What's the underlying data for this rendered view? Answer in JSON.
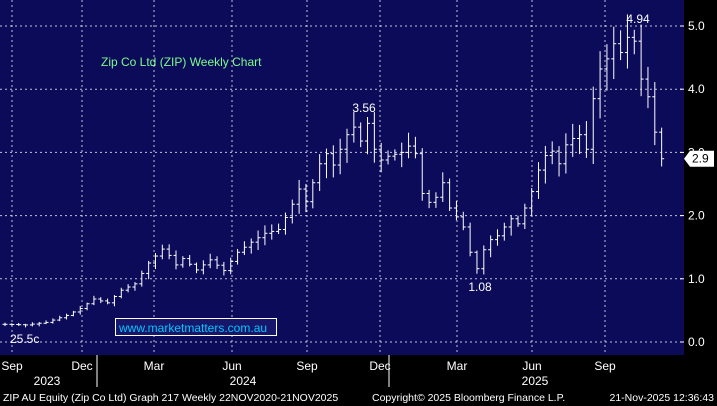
{
  "chart_data": {
    "type": "ohlc",
    "title": "Zip Co Ltd (ZIP) Weekly Chart",
    "y_ticks": [
      "0.0",
      "1.0",
      "2.0",
      "3.0",
      "4.0",
      "5.0"
    ],
    "ylim": [
      -0.15,
      5.3
    ],
    "x_months": [
      "Sep",
      "Dec",
      "Mar",
      "Jun",
      "Sep",
      "Dec",
      "Mar",
      "Jun",
      "Sep"
    ],
    "x_years": [
      "2023",
      "2024",
      "2025"
    ],
    "annotations": [
      {
        "text": "25.5c",
        "value": 0.255
      },
      {
        "text": "3.56",
        "value": 3.56
      },
      {
        "text": "1.08",
        "value": 1.08
      },
      {
        "text": "4.94",
        "value": 4.94
      }
    ],
    "last_value": "2.9",
    "close_path": [
      [
        0,
        0.28
      ],
      [
        3,
        0.27
      ],
      [
        6,
        0.31
      ],
      [
        9,
        0.42
      ],
      [
        11,
        0.53
      ],
      [
        13,
        0.68
      ],
      [
        15,
        0.62
      ],
      [
        17,
        0.82
      ],
      [
        19,
        0.92
      ],
      [
        21,
        1.25
      ],
      [
        23,
        1.47
      ],
      [
        24,
        1.37
      ],
      [
        25,
        1.22
      ],
      [
        26,
        1.32
      ],
      [
        28,
        1.14
      ],
      [
        30,
        1.3
      ],
      [
        32,
        1.13
      ],
      [
        34,
        1.42
      ],
      [
        36,
        1.58
      ],
      [
        38,
        1.72
      ],
      [
        40,
        1.78
      ],
      [
        41,
        1.97
      ],
      [
        42,
        2.18
      ],
      [
        43,
        2.42
      ],
      [
        44,
        2.22
      ],
      [
        45,
        2.52
      ],
      [
        46,
        2.82
      ],
      [
        47,
        2.98
      ],
      [
        48,
        2.8
      ],
      [
        49,
        3.05
      ],
      [
        50,
        3.28
      ],
      [
        51,
        3.4
      ],
      [
        52,
        3.18
      ],
      [
        53,
        3.46
      ],
      [
        54,
        3.05
      ],
      [
        55,
        2.88
      ],
      [
        56,
        2.94
      ],
      [
        58,
        3.0
      ],
      [
        59,
        3.1
      ],
      [
        60,
        2.98
      ],
      [
        61,
        2.35
      ],
      [
        62,
        2.21
      ],
      [
        63,
        2.29
      ],
      [
        64,
        2.52
      ],
      [
        65,
        2.12
      ],
      [
        66,
        1.98
      ],
      [
        67,
        1.82
      ],
      [
        68,
        1.42
      ],
      [
        69,
        1.16
      ],
      [
        70,
        1.46
      ],
      [
        71,
        1.62
      ],
      [
        72,
        1.68
      ],
      [
        73,
        1.82
      ],
      [
        74,
        1.95
      ],
      [
        75,
        1.87
      ],
      [
        76,
        2.12
      ],
      [
        77,
        2.38
      ],
      [
        78,
        2.72
      ],
      [
        79,
        2.95
      ],
      [
        80,
        3.02
      ],
      [
        81,
        2.82
      ],
      [
        82,
        3.12
      ],
      [
        83,
        3.22
      ],
      [
        84,
        3.28
      ],
      [
        85,
        3.05
      ],
      [
        86,
        3.85
      ],
      [
        87,
        4.32
      ],
      [
        88,
        4.48
      ],
      [
        89,
        4.72
      ],
      [
        90,
        4.58
      ],
      [
        91,
        4.82
      ],
      [
        92,
        4.76
      ],
      [
        93,
        4.16
      ],
      [
        94,
        3.88
      ],
      [
        95,
        3.32
      ],
      [
        96,
        2.9
      ]
    ]
  },
  "watermark": "www.marketmatters.com.au",
  "footer": {
    "left": "ZIP AU Equity (Zip Co Ltd) Graph 217 Weekly 22NOV2020-21NOV2025",
    "middle": "Copyright© 2025 Bloomberg Finance L.P.",
    "right": "21-Nov-2025 12:36:43"
  }
}
